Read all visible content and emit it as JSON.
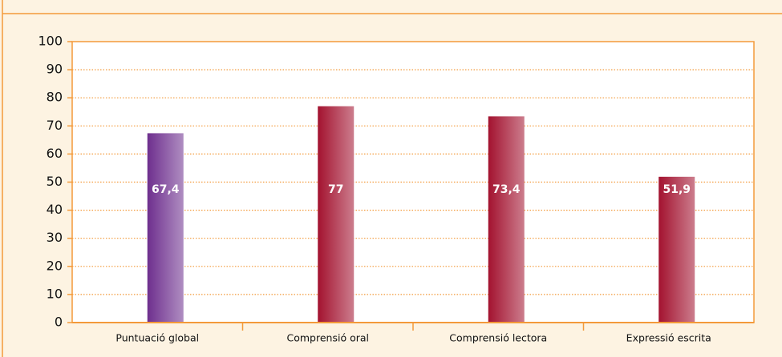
{
  "chart_data": {
    "type": "bar",
    "categories": [
      "Puntuació global",
      "Comprensió oral",
      "Comprensió lectora",
      "Expressió escrita"
    ],
    "values": [
      67.4,
      77,
      73.4,
      51.9
    ],
    "value_labels": [
      "67,4",
      "77",
      "73,4",
      "51,9"
    ],
    "colors": [
      "#6e2f8e",
      "#a3122f",
      "#a3122f",
      "#a3122f"
    ],
    "ylim": [
      0,
      100
    ],
    "yticks": [
      0,
      10,
      20,
      30,
      40,
      50,
      60,
      70,
      80,
      90,
      100
    ],
    "grid": true
  }
}
